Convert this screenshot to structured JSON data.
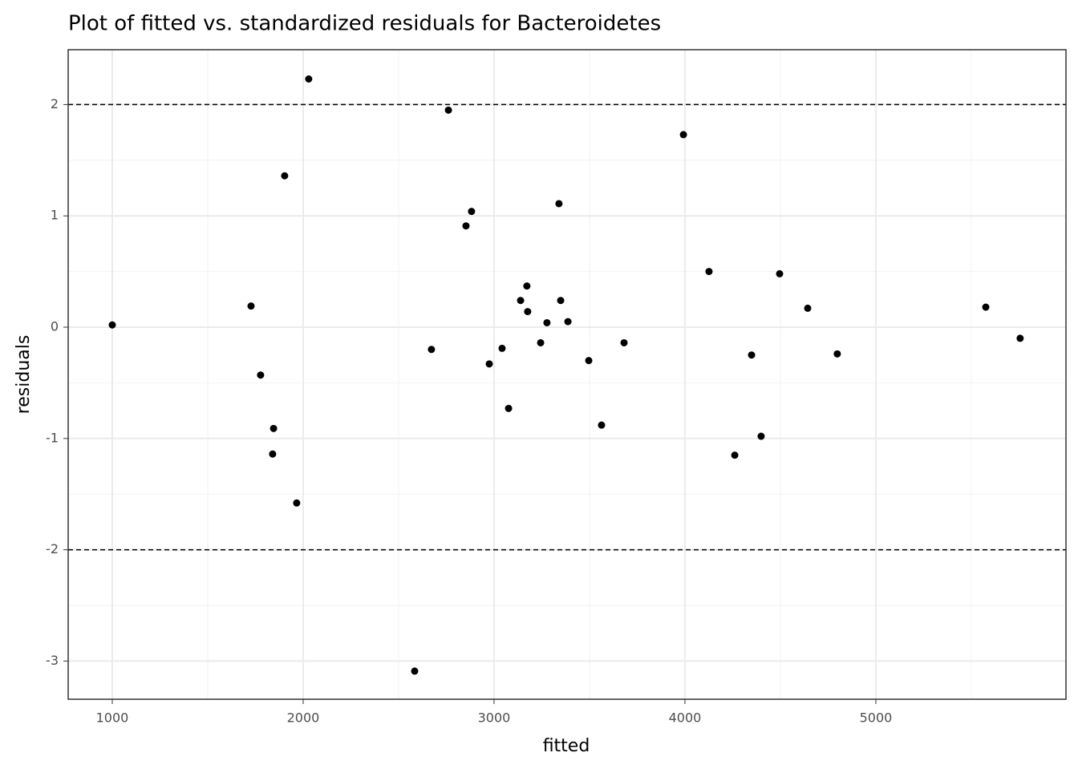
{
  "chart_data": {
    "type": "scatter",
    "title": "Plot of fitted vs. standardized residuals for Bacteroidetes",
    "x_label": "fitted",
    "y_label": "residuals",
    "x": [
      1000,
      1727,
      1777,
      1845,
      1840,
      1903,
      1966,
      2029,
      2584,
      2672,
      2761,
      2853,
      2882,
      2975,
      3042,
      3076,
      3139,
      3172,
      3176,
      3244,
      3277,
      3340,
      3349,
      3387,
      3496,
      3563,
      3681,
      3992,
      4126,
      4261,
      4349,
      4399,
      4496,
      4643,
      4798,
      5576,
      5756
    ],
    "values": [
      0.02,
      0.19,
      -0.43,
      -0.91,
      -1.14,
      1.36,
      -1.58,
      2.23,
      -3.09,
      -0.2,
      1.95,
      0.91,
      1.04,
      -0.33,
      -0.19,
      -0.73,
      0.24,
      0.37,
      0.14,
      -0.14,
      0.04,
      1.11,
      0.24,
      0.05,
      -0.3,
      -0.88,
      -0.14,
      1.73,
      0.5,
      -1.15,
      -0.25,
      -0.98,
      0.48,
      0.17,
      -0.24,
      0.18,
      -0.1
    ],
    "color": "#000000",
    "xlim": [
      769,
      5996
    ],
    "ylim": [
      -3.343,
      2.493
    ],
    "xticks": [
      1000,
      2000,
      3000,
      4000,
      5000
    ],
    "yticks": [
      -3,
      -2,
      -1,
      0,
      1,
      2
    ],
    "xminor": [
      1500,
      2500,
      3500,
      4500,
      5500
    ],
    "yminor": [
      -2.5,
      -1.5,
      -0.5,
      0.5,
      1.5
    ],
    "hlines": [
      -2,
      2
    ],
    "grid": true
  }
}
